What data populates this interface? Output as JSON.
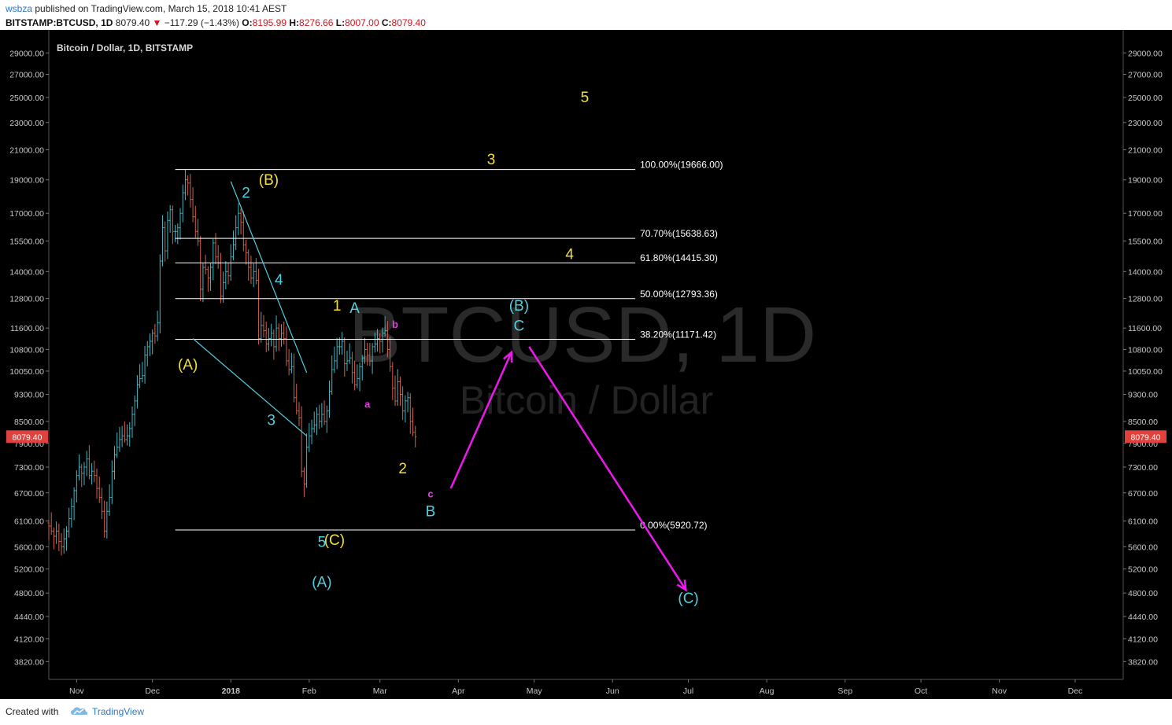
{
  "header": {
    "author": "wsbza",
    "published_text": "published on TradingView.com, March 15, 2018 10:41 AEST",
    "symbol": "BITSTAMP:BTCUSD, 1D",
    "last": "8079.40",
    "down_arrow": "▼",
    "change": "−117.29 (−1.43%)",
    "o_label": "O:",
    "o": "8195.99",
    "h_label": "H:",
    "h": "8276.66",
    "l_label": "L:",
    "l": "8007.00",
    "c_label": "C:",
    "c": "8079.40"
  },
  "footer": {
    "created_with": "Created with",
    "brand": "TradingView"
  },
  "colors": {
    "background": "#000000",
    "up": "#3fb8c4",
    "down": "#d3604e",
    "fib_line": "#ffffff",
    "wave_yellow": "#f5e030",
    "wave_cyan": "#4fd0e0",
    "wave_magenta": "#e040e0",
    "projection_arrow": "#ee18ee",
    "price_tag": "#e0413c"
  },
  "chart_data": {
    "type": "candlestick",
    "title": "Bitcoin / Dollar, 1D, BITSTAMP",
    "watermark_primary": "BTCUSD, 1D",
    "watermark_secondary": "Bitcoin / Dollar",
    "y_scale": "log",
    "ylim": [
      3600,
      30500
    ],
    "y_ticks": [
      "29000.00",
      "27000.00",
      "25000.00",
      "23000.00",
      "21000.00",
      "19000.00",
      "17000.00",
      "15500.00",
      "14000.00",
      "12800.00",
      "11600.00",
      "10800.00",
      "10050.00",
      "9300.00",
      "8500.00",
      "7900.00",
      "7300.00",
      "6700.00",
      "6100.00",
      "5600.00",
      "5200.00",
      "4800.00",
      "4440.00",
      "4120.00",
      "3820.00"
    ],
    "x_range": [
      "2017-10-21",
      "2018-12-20"
    ],
    "x_ticks": [
      {
        "date": "2017-11-01",
        "label": "Nov"
      },
      {
        "date": "2017-12-01",
        "label": "Dec"
      },
      {
        "date": "2018-01-01",
        "label": "2018"
      },
      {
        "date": "2018-02-01",
        "label": "Feb"
      },
      {
        "date": "2018-03-01",
        "label": "Mar"
      },
      {
        "date": "2018-04-01",
        "label": "Apr"
      },
      {
        "date": "2018-05-01",
        "label": "May"
      },
      {
        "date": "2018-06-01",
        "label": "Jun"
      },
      {
        "date": "2018-07-01",
        "label": "Jul"
      },
      {
        "date": "2018-08-01",
        "label": "Aug"
      },
      {
        "date": "2018-09-01",
        "label": "Sep"
      },
      {
        "date": "2018-10-01",
        "label": "Oct"
      },
      {
        "date": "2018-11-01",
        "label": "Nov"
      },
      {
        "date": "2018-12-01",
        "label": "Dec"
      }
    ],
    "last_price": "8079.40",
    "closes_start_date": "2017-10-21",
    "closes": [
      6000,
      5900,
      5800,
      5900,
      5700,
      5600,
      5750,
      5900,
      6150,
      6400,
      6750,
      7100,
      7300,
      7150,
      7300,
      7500,
      7100,
      7200,
      7100,
      6800,
      6600,
      6300,
      5900,
      6300,
      6600,
      7200,
      7600,
      7800,
      8000,
      8100,
      8000,
      8100,
      8300,
      8700,
      9100,
      9600,
      9800,
      9900,
      10600,
      10900,
      11100,
      11400,
      11300,
      11800,
      14500,
      16200,
      15000,
      16600,
      17200,
      16000,
      16000,
      16200,
      17000,
      18200,
      19000,
      18800,
      17800,
      16800,
      16000,
      15500,
      13200,
      14200,
      14100,
      13700,
      14200,
      15400,
      14700,
      14400,
      12900,
      13500,
      14000,
      13800,
      14700,
      15300,
      16200,
      17000,
      16500,
      15300,
      14900,
      14200,
      13700,
      14000,
      13600,
      11200,
      11700,
      11500,
      11000,
      11200,
      11400,
      10900,
      11600,
      11200,
      11400,
      11200,
      10400,
      10100,
      10200,
      9200,
      8800,
      8600,
      7200,
      6900,
      7800,
      8100,
      8300,
      8400,
      8700,
      8500,
      8700,
      8500,
      8800,
      9400,
      10100,
      10400,
      10900,
      10900,
      11100,
      10300,
      10400,
      10500,
      10000,
      9600,
      9800,
      10200,
      10500,
      10800,
      10600,
      10400,
      10900,
      11000,
      11200,
      11100,
      11400,
      11500,
      10800,
      10200,
      9500,
      9100,
      9700,
      9300,
      8800,
      9100,
      9200,
      8500,
      8200,
      8079.4
    ],
    "fibonacci": [
      {
        "label": "100.00%(19666.00)",
        "price": 19666.0
      },
      {
        "label": "70.70%(15638.63)",
        "price": 15638.63
      },
      {
        "label": "61.80%(14415.30)",
        "price": 14415.3
      },
      {
        "label": "50.00%(12793.36)",
        "price": 12793.36
      },
      {
        "label": "38.20%(11171.42)",
        "price": 11171.42
      },
      {
        "label": "0.00%(5920.72)",
        "price": 5920.72
      }
    ],
    "fib_from_date": "2017-12-10",
    "fib_to_date": "2018-06-10",
    "wave_labels": [
      {
        "text": "(A)",
        "color": "yellow",
        "date": "2017-12-15",
        "price": 10100
      },
      {
        "text": "(B)",
        "color": "yellow",
        "date": "2018-01-16",
        "price": 18700
      },
      {
        "text": "(C)",
        "color": "yellow",
        "date": "2018-02-11",
        "price": 5630
      },
      {
        "text": "1",
        "color": "yellow",
        "date": "2018-02-12",
        "price": 12300
      },
      {
        "text": "2",
        "color": "yellow",
        "date": "2018-03-10",
        "price": 7150
      },
      {
        "text": "3",
        "color": "yellow",
        "date": "2018-04-14",
        "price": 20000
      },
      {
        "text": "4",
        "color": "yellow",
        "date": "2018-05-15",
        "price": 14600
      },
      {
        "text": "5",
        "color": "yellow",
        "date": "2018-05-21",
        "price": 24600
      },
      {
        "text": "2",
        "color": "cyan",
        "date": "2018-01-07",
        "price": 17900
      },
      {
        "text": "3",
        "color": "cyan",
        "date": "2018-01-17",
        "price": 8400
      },
      {
        "text": "4",
        "color": "cyan",
        "date": "2018-01-20",
        "price": 13400
      },
      {
        "text": "5",
        "color": "cyan",
        "date": "2018-02-06",
        "price": 5600
      },
      {
        "text": "(A)",
        "color": "cyan",
        "date": "2018-02-06",
        "price": 4900
      },
      {
        "text": "A",
        "color": "cyan",
        "date": "2018-02-19",
        "price": 12200
      },
      {
        "text": "B",
        "color": "cyan",
        "date": "2018-03-21",
        "price": 6200
      },
      {
        "text": "(B)",
        "color": "cyan",
        "date": "2018-04-25",
        "price": 12300
      },
      {
        "text": "C",
        "color": "cyan",
        "date": "2018-04-25",
        "price": 11500
      },
      {
        "text": "(C)",
        "color": "cyan",
        "date": "2018-07-01",
        "price": 4640
      },
      {
        "text": "a",
        "color": "magenta",
        "date": "2018-02-24",
        "price": 8900
      },
      {
        "text": "b",
        "color": "magenta",
        "date": "2018-03-07",
        "price": 11600
      },
      {
        "text": "c",
        "color": "magenta",
        "date": "2018-03-21",
        "price": 6600
      }
    ],
    "trend_lines": [
      {
        "from": [
          "2018-01-01",
          18900
        ],
        "to": [
          "2018-01-31",
          10000
        ]
      },
      {
        "from": [
          "2017-12-17",
          11200
        ],
        "to": [
          "2018-01-31",
          8100
        ]
      }
    ],
    "projection_arrows": [
      {
        "from": [
          "2018-03-29",
          6800
        ],
        "to": [
          "2018-04-22",
          10700
        ]
      },
      {
        "from": [
          "2018-04-29",
          10900
        ],
        "to": [
          "2018-06-30",
          4850
        ]
      }
    ]
  }
}
